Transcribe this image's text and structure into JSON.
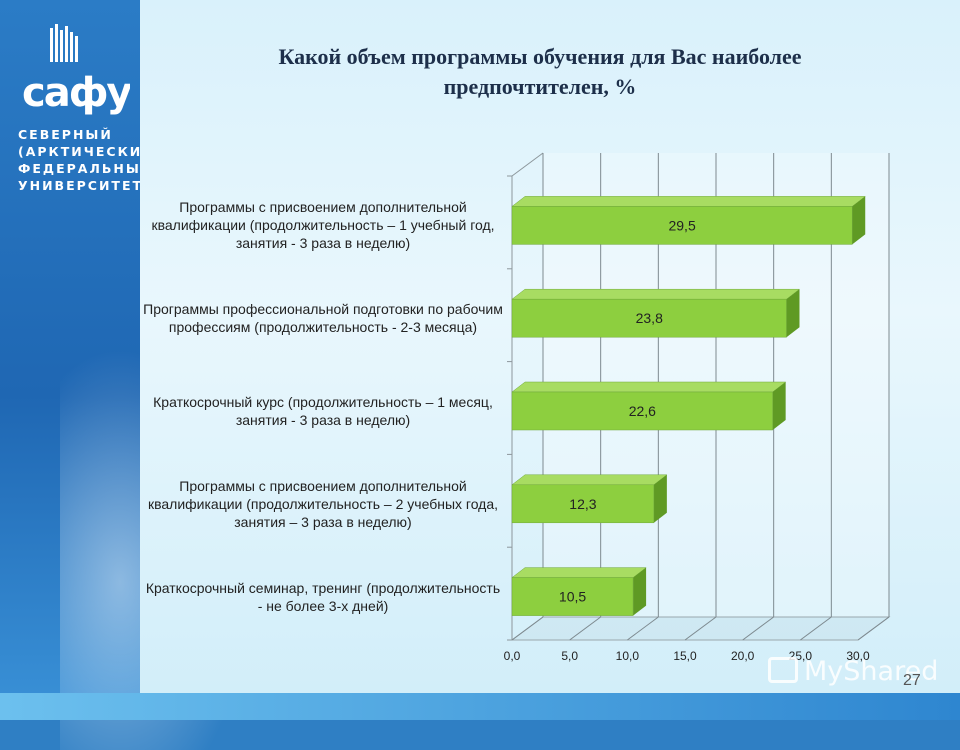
{
  "title": "Какой  объем программы обучения для Вас наиболее предпочтителен, %",
  "logo": {
    "wordmark": "сафу",
    "text_lines": [
      "СЕВЕРНЫЙ",
      "(АРКТИЧЕСКИЙ)",
      "ФЕДЕРАЛЬНЫЙ",
      "УНИВЕРСИТЕТ"
    ]
  },
  "watermark": "MyShared",
  "page_number": "27",
  "colors": {
    "bar_front": "#8dcf3f",
    "bar_top": "#a8dc62",
    "bar_side": "#5f9a24",
    "accent": "#1f67b3"
  },
  "chart_data": {
    "type": "bar",
    "orientation": "horizontal",
    "style": "3d",
    "categories": [
      "Программы с присвоением дополнительной квалификации (продолжительность – 1 учебный год, занятия - 3 раза в неделю)",
      "Программы профессиональной подготовки по рабочим профессиям (продолжительность - 2-3 месяца)",
      "Краткосрочный курс (продолжительность – 1 месяц, занятия - 3 раза в неделю)",
      "Программы с присвоением дополнительной квалификации (продолжительность – 2 учебных года, занятия – 3 раза в неделю)",
      "Краткосрочный семинар, тренинг (продолжительность - не более 3-х дней)"
    ],
    "values": [
      29.5,
      23.8,
      22.6,
      12.3,
      10.5
    ],
    "value_labels": [
      "29,5",
      "23,8",
      "22,6",
      "12,3",
      "10,5"
    ],
    "x_ticks": [
      "0,0",
      "5,0",
      "10,0",
      "15,0",
      "20,0",
      "25,0",
      "30,0"
    ],
    "xlim": [
      0,
      30
    ],
    "grid": true,
    "legend": "none"
  }
}
